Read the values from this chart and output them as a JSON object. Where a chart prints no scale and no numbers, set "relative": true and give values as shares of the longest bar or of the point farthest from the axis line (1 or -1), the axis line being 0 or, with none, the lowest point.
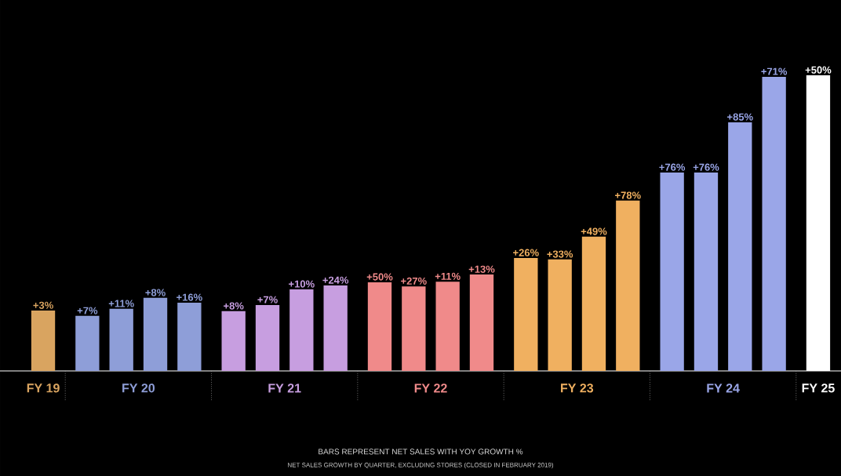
{
  "chart_data": {
    "type": "bar",
    "relative": true,
    "stacked": true,
    "title": "BARS REPRESENT NET SALES WITH YOY GROWTH %",
    "annotations": [
      {
        "text": "+3%",
        "y": 0.204
      },
      {
        "text": "+7%",
        "y": 0.186
      },
      {
        "text": "+11%",
        "y": 0.21
      },
      {
        "text": "+8%",
        "y": 0.247
      },
      {
        "text": "+16%",
        "y": 0.231
      },
      {
        "text": "+8%",
        "y": 0.202
      },
      {
        "text": "+7%",
        "y": 0.223
      },
      {
        "text": "+10%",
        "y": 0.276
      },
      {
        "text": "+24%",
        "y": 0.289
      },
      {
        "text": "+50%",
        "y": 0.3
      },
      {
        "text": "+27%",
        "y": 0.286
      },
      {
        "text": "+11%",
        "y": 0.302
      },
      {
        "text": "+13%",
        "y": 0.326
      },
      {
        "text": "+26%",
        "y": 0.382
      },
      {
        "text": "+33%",
        "y": 0.377
      },
      {
        "text": "+49%",
        "y": 0.454
      },
      {
        "text": "+78%",
        "y": 0.576
      },
      {
        "text": "+76%",
        "y": 0.671
      },
      {
        "text": "+76%",
        "y": 0.671
      },
      {
        "text": "+85%",
        "y": 0.841
      },
      {
        "text": "+71%",
        "y": 0.995
      },
      {
        "text": "+50%",
        "y": 1
      },
      "NET SALES GROWTH BY QUARTER, EXCLUDING STORES (CLOSED IN FEBRUARY 2019)"
    ],
    "categories": [
      null,
      null,
      null,
      null,
      null,
      null,
      null,
      null,
      null,
      null,
      null,
      null,
      null,
      null,
      null,
      null,
      null,
      null,
      null,
      null,
      null,
      null
    ],
    "series": [
      {
        "name": "FY 19",
        "color": "#d9a460",
        "values": [
          0.204,
          null,
          null,
          null,
          null,
          null,
          null,
          null,
          null,
          null,
          null,
          null,
          null,
          null,
          null,
          null,
          null,
          null,
          null,
          null,
          null,
          null
        ]
      },
      {
        "name": "FY 20",
        "color": "#8e9ed8",
        "values": [
          null,
          0.186,
          0.21,
          0.247,
          0.231,
          null,
          null,
          null,
          null,
          null,
          null,
          null,
          null,
          null,
          null,
          null,
          null,
          null,
          null,
          null,
          null,
          null
        ]
      },
      {
        "name": "FY 21",
        "color": "#c79ee0",
        "values": [
          null,
          null,
          null,
          null,
          null,
          0.202,
          0.223,
          0.276,
          0.289,
          null,
          null,
          null,
          null,
          null,
          null,
          null,
          null,
          null,
          null,
          null,
          null,
          null
        ]
      },
      {
        "name": "FY 22",
        "color": "#f08a8a",
        "values": [
          null,
          null,
          null,
          null,
          null,
          null,
          null,
          null,
          null,
          0.3,
          0.286,
          0.302,
          0.326,
          null,
          null,
          null,
          null,
          null,
          null,
          null,
          null,
          null
        ]
      },
      {
        "name": "FY 23",
        "color": "#f0b060",
        "values": [
          null,
          null,
          null,
          null,
          null,
          null,
          null,
          null,
          null,
          null,
          null,
          null,
          null,
          0.382,
          0.377,
          0.454,
          0.576,
          null,
          null,
          null,
          null,
          null
        ]
      },
      {
        "name": "FY 24",
        "color": "#9aa6e8",
        "values": [
          null,
          null,
          null,
          null,
          null,
          null,
          null,
          null,
          null,
          null,
          null,
          null,
          null,
          null,
          null,
          null,
          null,
          0.671,
          0.671,
          0.841,
          0.995,
          null
        ]
      },
      {
        "name": "FY 25",
        "color": "#ffffff",
        "values": [
          null,
          null,
          null,
          null,
          null,
          null,
          null,
          null,
          null,
          null,
          null,
          null,
          null,
          null,
          null,
          null,
          null,
          null,
          null,
          null,
          null,
          1
        ]
      }
    ]
  }
}
